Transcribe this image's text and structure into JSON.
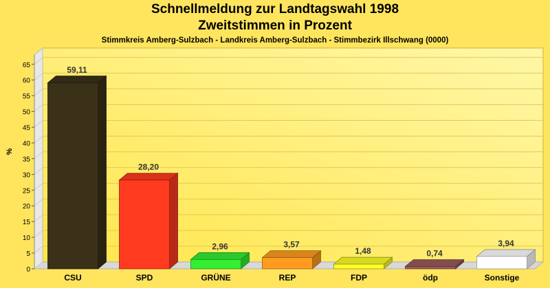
{
  "header": {
    "title": "Schnellmeldung zur Landtagswahl 1998",
    "subtitle": "Zweitstimmen in Prozent",
    "location": "Stimmkreis Amberg-Sulzbach - Landkreis Amberg-Sulzbach - Stimmbezirk Illschwang (0000)"
  },
  "chart_data": {
    "type": "bar",
    "title": "Schnellmeldung zur Landtagswahl 1998",
    "subtitle": "Zweitstimmen in Prozent",
    "ylabel": "%",
    "xlabel": "",
    "ylim": [
      0,
      68
    ],
    "yticks": [
      0,
      5,
      10,
      15,
      20,
      25,
      30,
      35,
      40,
      45,
      50,
      55,
      60,
      65
    ],
    "grid": true,
    "categories": [
      "CSU",
      "SPD",
      "GRÜNE",
      "REP",
      "FDP",
      "ödp",
      "Sonstige"
    ],
    "values": [
      59.11,
      28.2,
      2.96,
      3.57,
      1.48,
      0.74,
      3.94
    ],
    "value_labels": [
      "59,11",
      "28,20",
      "2,96",
      "3,57",
      "1,48",
      "0,74",
      "3,94"
    ],
    "colors": [
      "#3a3118",
      "#ff3a1f",
      "#33ee33",
      "#ff9c1f",
      "#ffff28",
      "#9a5a5a",
      "#ffffff"
    ]
  }
}
